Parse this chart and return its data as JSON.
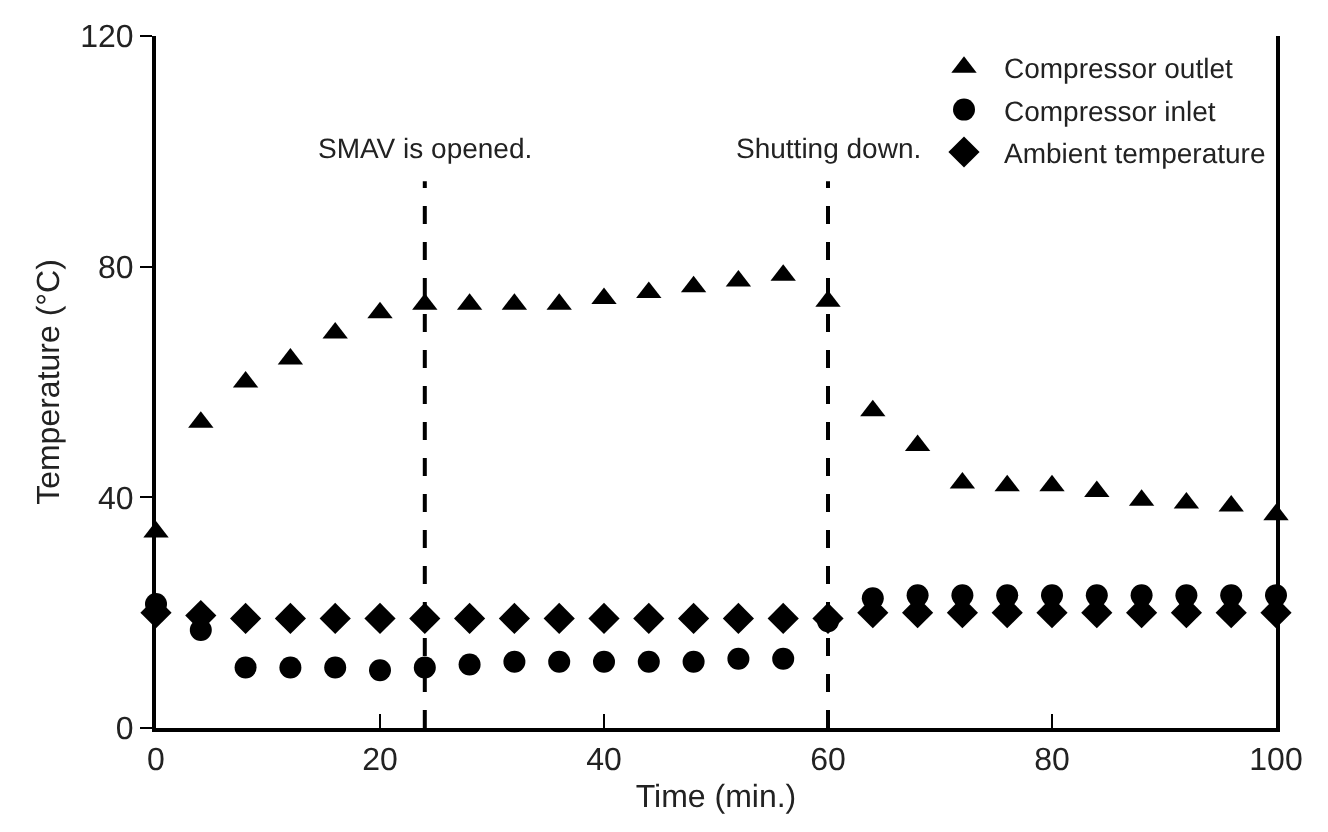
{
  "chart_data": {
    "type": "scatter",
    "xlabel": "Time (min.)",
    "ylabel": "Temperature (°C)",
    "x": [
      0,
      4,
      8,
      12,
      16,
      20,
      24,
      28,
      32,
      36,
      40,
      44,
      48,
      52,
      56,
      60,
      64,
      68,
      72,
      76,
      80,
      84,
      88,
      92,
      96,
      100
    ],
    "xlim": [
      0,
      100
    ],
    "xticks": [
      0,
      20,
      40,
      60,
      80,
      100
    ],
    "ylim": [
      0,
      120
    ],
    "yticks": [
      0,
      40,
      80,
      120
    ],
    "grid": false,
    "legend": "top right",
    "series": [
      {
        "name": "Compressor outlet",
        "color": "#000000",
        "marker": "triangle",
        "values": [
          34,
          53,
          60,
          64,
          68.5,
          72,
          73.5,
          73.5,
          73.5,
          73.5,
          74.5,
          75.5,
          76.5,
          77.5,
          78.5,
          74,
          55,
          49,
          42.5,
          42,
          42,
          41,
          39.5,
          39,
          38.5,
          37
        ]
      },
      {
        "name": "Compressor inlet",
        "color": "#000000",
        "marker": "circle",
        "values": [
          21.5,
          17,
          10.5,
          10.5,
          10.5,
          10,
          10.5,
          11,
          11.5,
          11.5,
          11.5,
          11.5,
          11.5,
          12,
          12,
          18.5,
          22.5,
          23,
          23,
          23,
          23,
          23,
          23,
          23,
          23,
          23
        ]
      },
      {
        "name": "Ambient temperature",
        "color": "#000000",
        "marker": "diamond",
        "values": [
          20,
          19.5,
          19,
          19,
          19,
          19,
          19,
          19,
          19,
          19,
          19,
          19,
          19,
          19,
          19,
          19,
          20,
          20,
          20,
          20,
          20,
          20,
          20,
          20,
          20,
          20
        ]
      }
    ],
    "ref_lines": [
      {
        "axis": "x",
        "value": 24,
        "label": "SMAV is opened.",
        "line_style": "dashed",
        "color": "#000000"
      },
      {
        "axis": "x",
        "value": 60,
        "label": "Shutting down.",
        "line_style": "dashed",
        "color": "#000000"
      }
    ]
  }
}
